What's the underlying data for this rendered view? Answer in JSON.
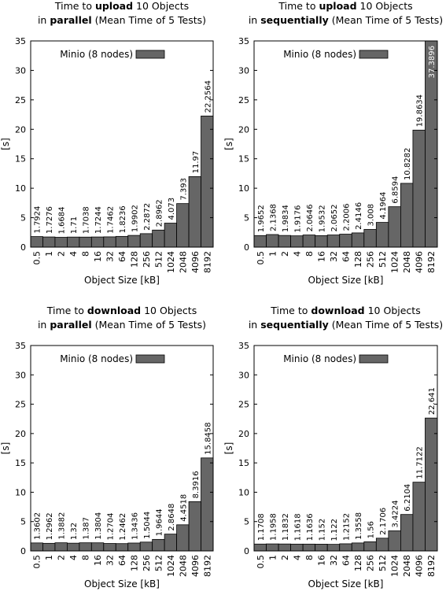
{
  "chart_data": [
    {
      "type": "bar",
      "title_parts": [
        {
          "line": 1,
          "text": "Time to ",
          "bold": false
        },
        {
          "line": 1,
          "text": "upload",
          "bold": true
        },
        {
          "line": 1,
          "text": " 10 Objects",
          "bold": false
        },
        {
          "line": 2,
          "text": "in ",
          "bold": false
        },
        {
          "line": 2,
          "text": "parallel",
          "bold": true
        },
        {
          "line": 2,
          "text": " (Mean Time of 5 Tests)",
          "bold": false
        }
      ],
      "xlabel": "Object Size [kB]",
      "ylabel": "[s]",
      "ylim": [
        0,
        35
      ],
      "yticks": [
        0,
        5,
        10,
        15,
        20,
        25,
        30,
        35
      ],
      "categories": [
        "0.5",
        "1",
        "2",
        "4",
        "8",
        "16",
        "32",
        "64",
        "128",
        "256",
        "512",
        "1024",
        "2048",
        "4096",
        "8192"
      ],
      "series": [
        {
          "name": "Minio (8 nodes)",
          "values": [
            1.7924,
            1.7276,
            1.6684,
            1.71,
            1.7038,
            1.7244,
            1.7462,
            1.8236,
            1.9902,
            2.2872,
            2.8962,
            4.073,
            7.393,
            11.97,
            22.2564
          ]
        }
      ],
      "value_labels": [
        "1.7924",
        "1.7276",
        "1.6684",
        "1.71",
        "1.7038",
        "1.7244",
        "1.7462",
        "1.8236",
        "1.9902",
        "2.2872",
        "2.8962",
        "4.073",
        "7.393",
        "11.97",
        "22.2564"
      ],
      "legend": "top-left",
      "grid": false
    },
    {
      "type": "bar",
      "title_parts": [
        {
          "line": 1,
          "text": "Time to ",
          "bold": false
        },
        {
          "line": 1,
          "text": "upload",
          "bold": true
        },
        {
          "line": 1,
          "text": " 10 Objects",
          "bold": false
        },
        {
          "line": 2,
          "text": "in ",
          "bold": false
        },
        {
          "line": 2,
          "text": "sequentially",
          "bold": true
        },
        {
          "line": 2,
          "text": " (Mean Time of 5 Tests)",
          "bold": false
        }
      ],
      "xlabel": "Object Size [kB]",
      "ylabel": "[s]",
      "ylim": [
        0,
        35
      ],
      "yticks": [
        0,
        5,
        10,
        15,
        20,
        25,
        30,
        35
      ],
      "categories": [
        "0.5",
        "1",
        "2",
        "4",
        "8",
        "16",
        "32",
        "64",
        "128",
        "256",
        "512",
        "1024",
        "2048",
        "4096",
        "8192"
      ],
      "series": [
        {
          "name": "Minio (8 nodes)",
          "values": [
            1.9652,
            2.1368,
            1.9834,
            1.9176,
            2.0646,
            1.9532,
            2.0652,
            2.2006,
            2.4146,
            3.008,
            4.1964,
            6.8594,
            10.8282,
            19.8634,
            37.3896
          ]
        }
      ],
      "value_labels": [
        "1.9652",
        "2.1368",
        "1.9834",
        "1.9176",
        "2.0646",
        "1.9532",
        "2.0652",
        "2.2006",
        "2.4146",
        "3.008",
        "4.1964",
        "6.8594",
        "10.8282",
        "19.8634",
        "37.3896"
      ],
      "legend": "top-left",
      "grid": false
    },
    {
      "type": "bar",
      "title_parts": [
        {
          "line": 1,
          "text": "Time to ",
          "bold": false
        },
        {
          "line": 1,
          "text": "download",
          "bold": true
        },
        {
          "line": 1,
          "text": " 10 Objects",
          "bold": false
        },
        {
          "line": 2,
          "text": "in ",
          "bold": false
        },
        {
          "line": 2,
          "text": "parallel",
          "bold": true
        },
        {
          "line": 2,
          "text": " (Mean Time of 5 Tests)",
          "bold": false
        }
      ],
      "xlabel": "Object Size [kB]",
      "ylabel": "[s]",
      "ylim": [
        0,
        35
      ],
      "yticks": [
        0,
        5,
        10,
        15,
        20,
        25,
        30,
        35
      ],
      "categories": [
        "0.5",
        "1",
        "2",
        "4",
        "8",
        "16",
        "32",
        "64",
        "128",
        "256",
        "512",
        "1024",
        "2048",
        "4096",
        "8192"
      ],
      "series": [
        {
          "name": "Minio (8 nodes)",
          "values": [
            1.3602,
            1.2962,
            1.3882,
            1.32,
            1.387,
            1.3804,
            1.2704,
            1.2462,
            1.3436,
            1.5044,
            1.9644,
            2.8648,
            4.4518,
            8.3916,
            15.8458
          ]
        }
      ],
      "value_labels": [
        "1.3602",
        "1.2962",
        "1.3882",
        "1.32",
        "1.387",
        "1.3804",
        "1.2704",
        "1.2462",
        "1.3436",
        "1.5044",
        "1.9644",
        "2.8648",
        "4.4518",
        "8.3916",
        "15.8458"
      ],
      "legend": "top-left",
      "grid": false
    },
    {
      "type": "bar",
      "title_parts": [
        {
          "line": 1,
          "text": "Time to ",
          "bold": false
        },
        {
          "line": 1,
          "text": "download",
          "bold": true
        },
        {
          "line": 1,
          "text": " 10 Objects",
          "bold": false
        },
        {
          "line": 2,
          "text": "in ",
          "bold": false
        },
        {
          "line": 2,
          "text": "sequentially",
          "bold": true
        },
        {
          "line": 2,
          "text": " (Mean Time of 5 Tests)",
          "bold": false
        }
      ],
      "xlabel": "Object Size [kB]",
      "ylabel": "[s]",
      "ylim": [
        0,
        35
      ],
      "yticks": [
        0,
        5,
        10,
        15,
        20,
        25,
        30,
        35
      ],
      "categories": [
        "0.5",
        "1",
        "2",
        "4",
        "8",
        "16",
        "32",
        "64",
        "128",
        "256",
        "512",
        "1024",
        "2048",
        "4096",
        "8192"
      ],
      "series": [
        {
          "name": "Minio (8 nodes)",
          "values": [
            1.1708,
            1.1958,
            1.1832,
            1.1618,
            1.1636,
            1.152,
            1.122,
            1.2152,
            1.3558,
            1.56,
            2.1706,
            3.4224,
            6.2104,
            11.7122,
            22.641
          ]
        }
      ],
      "value_labels": [
        "1.1708",
        "1.1958",
        "1.1832",
        "1.1618",
        "1.1636",
        "1.152",
        "1.122",
        "1.2152",
        "1.3558",
        "1.56",
        "2.1706",
        "3.4224",
        "6.2104",
        "11.7122",
        "22.641"
      ],
      "legend": "top-left",
      "grid": false
    }
  ],
  "colors": {
    "bar_fill": "#666666",
    "bar_stroke": "#000000",
    "axis": "#000000",
    "inside_label": "#ffffff"
  }
}
